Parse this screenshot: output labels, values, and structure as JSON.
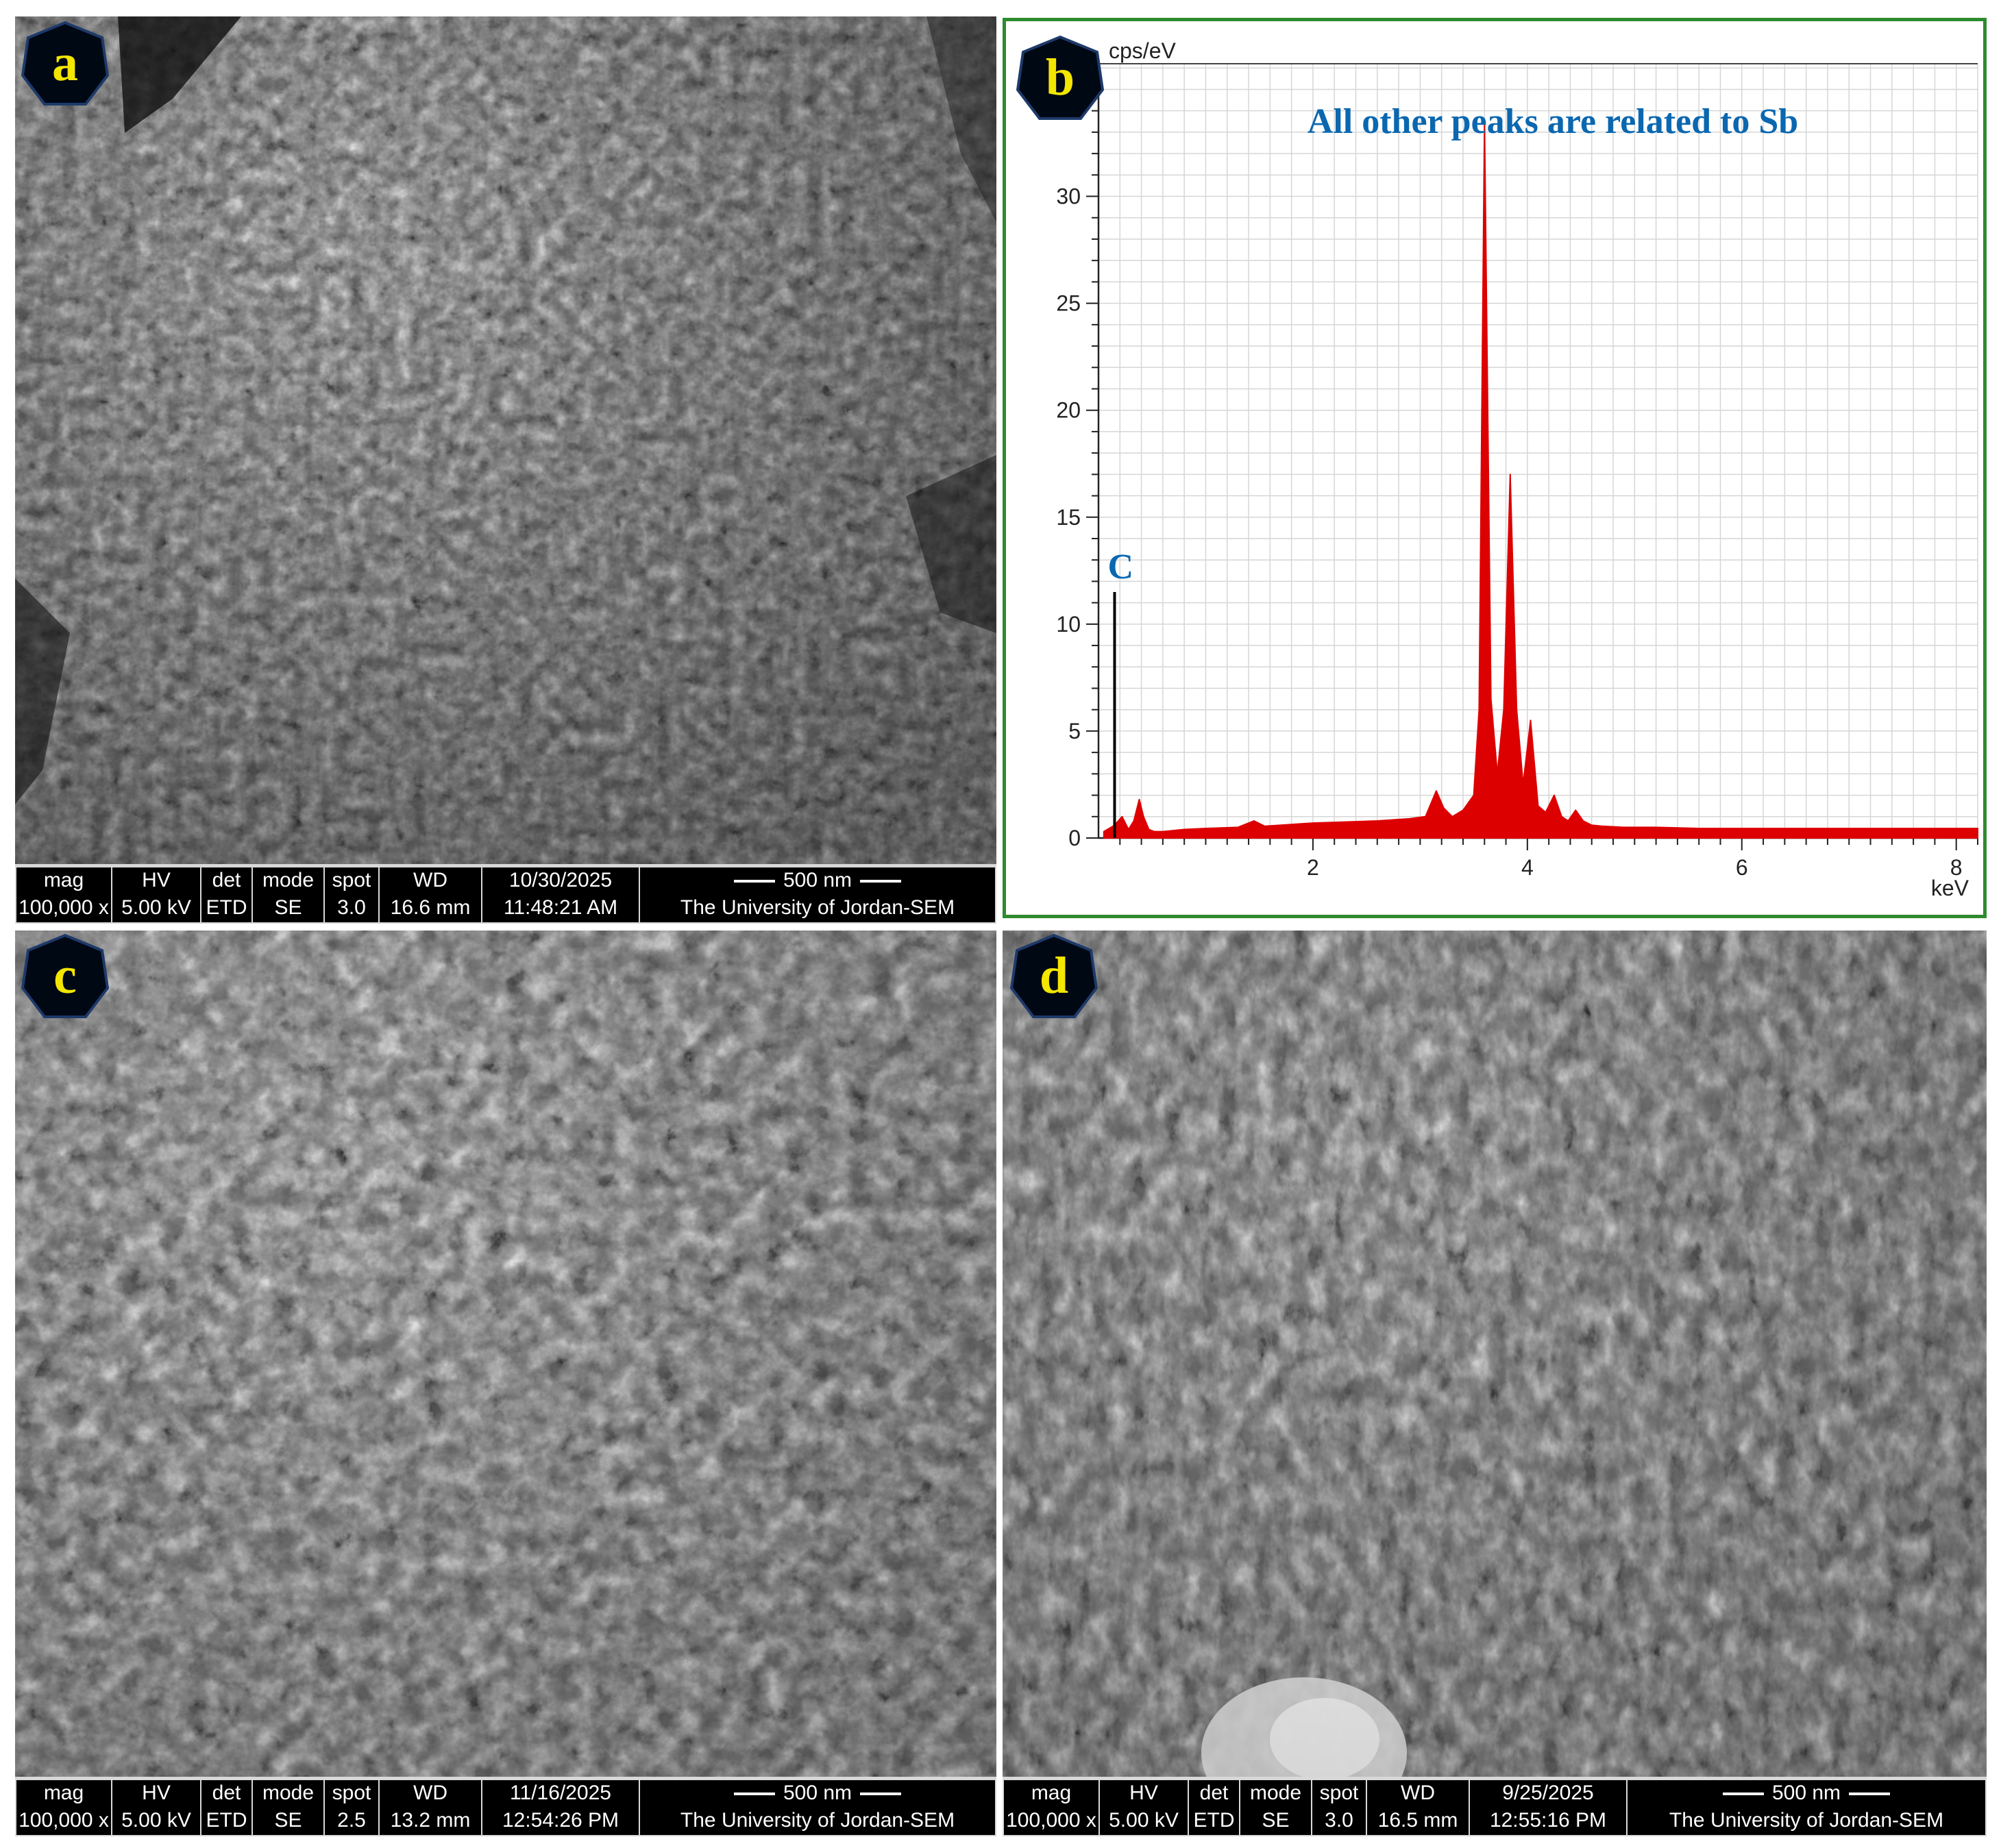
{
  "panels": {
    "a": {
      "label": "a",
      "databar": {
        "headers": [
          "mag",
          "HV",
          "det",
          "mode",
          "spot",
          "WD",
          "10/30/2025",
          "500 nm"
        ],
        "values": [
          "100,000 x",
          "5.00 kV",
          "ETD",
          "SE",
          "3.0",
          "16.6 mm",
          "11:48:21 AM",
          "The University of Jordan-SEM"
        ]
      }
    },
    "b": {
      "label": "b"
    },
    "c": {
      "label": "c",
      "databar": {
        "headers": [
          "mag",
          "HV",
          "det",
          "mode",
          "spot",
          "WD",
          "11/16/2025",
          "500 nm"
        ],
        "values": [
          "100,000 x",
          "5.00 kV",
          "ETD",
          "SE",
          "2.5",
          "13.2 mm",
          "12:54:26 PM",
          "The University of Jordan-SEM"
        ]
      }
    },
    "d": {
      "label": "d",
      "databar": {
        "headers": [
          "mag",
          "HV",
          "det",
          "mode",
          "spot",
          "WD",
          "9/25/2025",
          "500 nm"
        ],
        "values": [
          "100,000 x",
          "5.00 kV",
          "ETD",
          "SE",
          "3.0",
          "16.5 mm",
          "12:55:16 PM",
          "The University of Jordan-SEM"
        ]
      }
    }
  },
  "colors": {
    "spectrum": "#dd0000",
    "annotation": "#0a67b0",
    "frame": "#2e8b2e",
    "badge_text": "#f3e600"
  },
  "chart_data": {
    "type": "area",
    "ylabel": "cps/eV",
    "xlabel": "keV",
    "xlim": [
      0,
      8.2
    ],
    "ylim": [
      0,
      35
    ],
    "xticks": [
      2,
      4,
      6,
      8
    ],
    "yticks": [
      0,
      5,
      10,
      15,
      20,
      25,
      30,
      35
    ],
    "grid": true,
    "annotation": "All other peaks are related to Sb",
    "marker": {
      "label": "C",
      "x": 0.15,
      "y": 11.5
    },
    "series": [
      {
        "x": [
          0.05,
          0.15,
          0.22,
          0.28,
          0.33,
          0.38,
          0.42,
          0.47,
          0.52,
          0.6,
          0.8,
          1.0,
          1.3,
          1.45,
          1.55,
          1.7,
          2.0,
          2.3,
          2.6,
          2.9,
          3.05,
          3.15,
          3.22,
          3.3,
          3.4,
          3.5,
          3.55,
          3.6,
          3.66,
          3.72,
          3.78,
          3.84,
          3.9,
          3.96,
          4.03,
          4.1,
          4.17,
          4.25,
          4.32,
          4.38,
          4.45,
          4.52,
          4.6,
          4.7,
          4.9,
          5.2,
          5.6,
          6.0,
          6.5,
          7.0,
          7.5,
          8.0,
          8.2
        ],
        "y": [
          0.3,
          0.6,
          1.0,
          0.4,
          0.8,
          1.8,
          1.0,
          0.4,
          0.3,
          0.3,
          0.4,
          0.45,
          0.5,
          0.8,
          0.55,
          0.6,
          0.7,
          0.75,
          0.8,
          0.9,
          1.0,
          2.2,
          1.4,
          1.0,
          1.3,
          2.0,
          6.0,
          33.5,
          6.5,
          3.0,
          6.0,
          17.0,
          6.0,
          2.5,
          5.5,
          1.5,
          1.2,
          2.0,
          1.0,
          0.8,
          1.3,
          0.8,
          0.6,
          0.55,
          0.5,
          0.5,
          0.45,
          0.45,
          0.45,
          0.45,
          0.45,
          0.45,
          0.45
        ]
      }
    ]
  }
}
